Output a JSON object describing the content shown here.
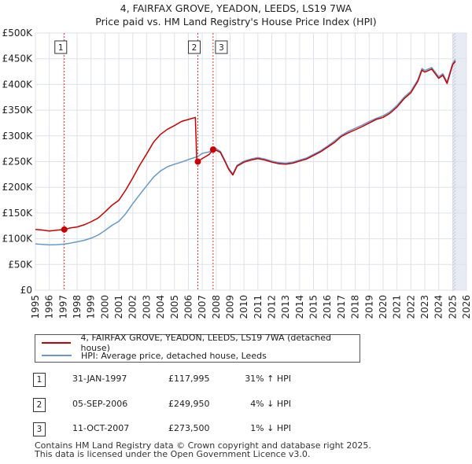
{
  "title_line1": "4, FAIRFAX GROVE, YEADON, LEEDS, LS19 7WA",
  "title_line2": "Price paid vs. HM Land Registry's House Price Index (HPI)",
  "colors": {
    "property": "#cc0000",
    "hpi": "#6699cc",
    "grid": "#dde2ea",
    "shade": "#dbe3ef"
  },
  "chart_data": {
    "type": "line",
    "xlim": [
      1995,
      2026
    ],
    "ylim": [
      0,
      500000
    ],
    "x_ticks": [
      1995,
      1996,
      1997,
      1998,
      1999,
      2000,
      2001,
      2002,
      2003,
      2004,
      2005,
      2006,
      2007,
      2008,
      2009,
      2010,
      2011,
      2012,
      2013,
      2014,
      2015,
      2016,
      2017,
      2018,
      2019,
      2020,
      2021,
      2022,
      2023,
      2024,
      2025,
      2026
    ],
    "y_ticks": [
      {
        "value": 0,
        "label": "£0"
      },
      {
        "value": 50000,
        "label": "£50K"
      },
      {
        "value": 100000,
        "label": "£100K"
      },
      {
        "value": 150000,
        "label": "£150K"
      },
      {
        "value": 200000,
        "label": "£200K"
      },
      {
        "value": 250000,
        "label": "£250K"
      },
      {
        "value": 300000,
        "label": "£300K"
      },
      {
        "value": 350000,
        "label": "£350K"
      },
      {
        "value": 400000,
        "label": "£400K"
      },
      {
        "value": 450000,
        "label": "£450K"
      },
      {
        "value": 500000,
        "label": "£500K"
      }
    ],
    "forecast_from": 2025.0,
    "series": [
      {
        "name": "4, FAIRFAX GROVE, YEADON, LEEDS, LS19 7WA (detached house)",
        "x": [
          1995.0,
          1995.5,
          1996.0,
          1996.5,
          1997.08,
          1997.5,
          1998.0,
          1998.5,
          1999.0,
          1999.5,
          2000.0,
          2000.5,
          2001.0,
          2001.5,
          2002.0,
          2002.5,
          2003.0,
          2003.5,
          2004.0,
          2004.5,
          2005.0,
          2005.5,
          2006.0,
          2006.5,
          2006.6,
          2006.68,
          2007.0,
          2007.5,
          2007.78,
          2008.0,
          2008.3,
          2008.6,
          2008.9,
          2009.2,
          2009.5,
          2010.0,
          2010.5,
          2011.0,
          2011.5,
          2012.0,
          2012.5,
          2013.0,
          2013.5,
          2014.0,
          2014.5,
          2015.0,
          2015.5,
          2016.0,
          2016.5,
          2017.0,
          2017.5,
          2018.0,
          2018.5,
          2019.0,
          2019.5,
          2020.0,
          2020.5,
          2021.0,
          2021.5,
          2022.0,
          2022.5,
          2022.8,
          2023.0,
          2023.5,
          2024.0,
          2024.3,
          2024.6,
          2025.0,
          2025.2
        ],
        "y": [
          118000,
          117000,
          115000,
          116500,
          117995,
          121000,
          123000,
          127000,
          133000,
          140000,
          152000,
          165000,
          175000,
          195000,
          218000,
          243000,
          265000,
          288000,
          303000,
          313000,
          320000,
          328000,
          332000,
          336000,
          255000,
          249950,
          256000,
          264000,
          273500,
          272000,
          268000,
          252000,
          235000,
          224000,
          241000,
          249000,
          253000,
          256000,
          253000,
          249000,
          246000,
          245000,
          247000,
          251000,
          255000,
          262000,
          269000,
          278000,
          287000,
          299000,
          306000,
          312000,
          318000,
          325000,
          332000,
          336000,
          344000,
          356000,
          372000,
          384000,
          406000,
          428000,
          424000,
          430000,
          412000,
          418000,
          402000,
          438000,
          445000
        ]
      },
      {
        "name": "HPI: Average price, detached house, Leeds",
        "x": [
          1995.0,
          1995.5,
          1996.0,
          1996.5,
          1997.0,
          1997.5,
          1998.0,
          1998.5,
          1999.0,
          1999.5,
          2000.0,
          2000.5,
          2001.0,
          2001.5,
          2002.0,
          2002.5,
          2003.0,
          2003.5,
          2004.0,
          2004.5,
          2005.0,
          2005.5,
          2006.0,
          2006.68,
          2007.0,
          2007.5,
          2007.78,
          2008.0,
          2008.3,
          2008.6,
          2008.9,
          2009.2,
          2009.5,
          2010.0,
          2010.5,
          2011.0,
          2011.5,
          2012.0,
          2012.5,
          2013.0,
          2013.5,
          2014.0,
          2014.5,
          2015.0,
          2015.5,
          2016.0,
          2016.5,
          2017.0,
          2017.5,
          2018.0,
          2018.5,
          2019.0,
          2019.5,
          2020.0,
          2020.5,
          2021.0,
          2021.5,
          2022.0,
          2022.5,
          2022.8,
          2023.0,
          2023.5,
          2024.0,
          2024.3,
          2024.6,
          2025.0,
          2025.2
        ],
        "y": [
          90000,
          89000,
          88000,
          88500,
          89500,
          91500,
          94000,
          97000,
          101000,
          107000,
          116000,
          126000,
          134000,
          149000,
          168000,
          186000,
          203000,
          220000,
          232000,
          240000,
          245000,
          249000,
          254000,
          260000,
          266000,
          269000,
          275500,
          275000,
          270000,
          254000,
          237000,
          226000,
          243000,
          251000,
          255000,
          258000,
          255000,
          251000,
          248000,
          247000,
          249000,
          253000,
          257000,
          264000,
          271000,
          280000,
          290000,
          301000,
          309000,
          315000,
          321000,
          328000,
          334000,
          339000,
          347000,
          359000,
          375000,
          387000,
          409000,
          431000,
          427000,
          433000,
          415000,
          421000,
          405000,
          441000,
          448000
        ]
      }
    ],
    "sales": [
      {
        "num": "1",
        "x": 1997.08,
        "y": 117995
      },
      {
        "num": "2",
        "x": 2006.68,
        "y": 249950
      },
      {
        "num": "3",
        "x": 2007.78,
        "y": 273500
      }
    ]
  },
  "legend": {
    "property_label": "4, FAIRFAX GROVE, YEADON, LEEDS, LS19 7WA (detached house)",
    "hpi_label": "HPI: Average price, detached house, Leeds"
  },
  "sales_table": [
    {
      "num": "1",
      "date": "31-JAN-1997",
      "price": "£117,995",
      "hpi": "31% ↑ HPI"
    },
    {
      "num": "2",
      "date": "05-SEP-2006",
      "price": "£249,950",
      "hpi": "4% ↓ HPI"
    },
    {
      "num": "3",
      "date": "11-OCT-2007",
      "price": "£273,500",
      "hpi": "1% ↓ HPI"
    }
  ],
  "footer_line1": "Contains HM Land Registry data © Crown copyright and database right 2025.",
  "footer_line2": "This data is licensed under the Open Government Licence v3.0."
}
